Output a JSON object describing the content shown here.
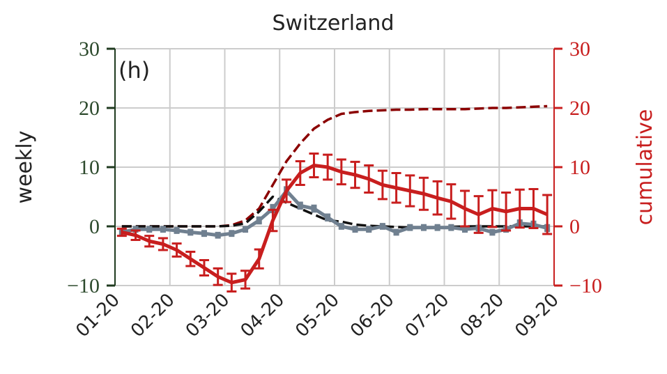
{
  "chart_data": {
    "type": "line",
    "title": "Switzerland",
    "annotation": "(h)",
    "ylabel": "weekly",
    "y2label": "cumulative",
    "xlim": [
      0,
      8
    ],
    "xticks": [
      {
        "value": 0,
        "label": "01-20"
      },
      {
        "value": 1,
        "label": "02-20"
      },
      {
        "value": 2,
        "label": "03-20"
      },
      {
        "value": 3,
        "label": "04-20"
      },
      {
        "value": 4,
        "label": "05-20"
      },
      {
        "value": 5,
        "label": "06-20"
      },
      {
        "value": 6,
        "label": "07-20"
      },
      {
        "value": 7,
        "label": "08-20"
      },
      {
        "value": 8,
        "label": "09-20"
      }
    ],
    "ylim": [
      -10,
      30
    ],
    "yticks": [
      {
        "value": -10,
        "label": "−10"
      },
      0,
      10,
      20,
      30
    ],
    "y2lim": [
      -10,
      30
    ],
    "y2ticks": [
      {
        "value": -10,
        "label": "−10"
      },
      0,
      10,
      20,
      30
    ],
    "grid": true,
    "x": [
      0.125,
      0.375,
      0.625,
      0.875,
      1.125,
      1.375,
      1.625,
      1.875,
      2.125,
      2.375,
      2.625,
      2.875,
      3.125,
      3.375,
      3.625,
      3.875,
      4.125,
      4.375,
      4.625,
      4.875,
      5.125,
      5.375,
      5.625,
      5.875,
      6.125,
      6.375,
      6.625,
      6.875,
      7.125,
      7.375,
      7.625,
      7.875
    ],
    "series": [
      {
        "color": "#8b0000",
        "style": "dashed",
        "axis": "y2",
        "values": [
          0,
          0,
          0,
          0,
          0,
          0,
          0,
          0,
          0.2,
          1,
          3,
          7,
          11,
          14,
          16.5,
          18,
          19,
          19.3,
          19.5,
          19.6,
          19.7,
          19.7,
          19.8,
          19.8,
          19.8,
          19.8,
          19.9,
          20,
          20,
          20.1,
          20.2,
          20.3
        ]
      },
      {
        "color": "#111111",
        "style": "dashed",
        "values": [
          0,
          0,
          0,
          0,
          0,
          0,
          0,
          0,
          0.1,
          0.5,
          2.5,
          5,
          4,
          3,
          2,
          1,
          0.8,
          0.3,
          0.1,
          0,
          -0.1,
          -0.2,
          -0.2,
          -0.2,
          -0.1,
          0,
          0,
          0,
          0,
          0,
          0,
          0
        ]
      },
      {
        "color": "#708090",
        "style": "solid",
        "marker": "square",
        "values": [
          -1,
          -0.5,
          -0.5,
          -0.5,
          -0.7,
          -1,
          -1.2,
          -1.5,
          -1.2,
          -0.5,
          1,
          3,
          6,
          3.5,
          3,
          1.5,
          0,
          -0.5,
          -0.5,
          0,
          -1,
          -0.2,
          -0.2,
          -0.2,
          -0.2,
          -0.5,
          -0.3,
          -1,
          -0.5,
          0.5,
          0.3,
          -0.3
        ],
        "errors": [
          0.4,
          0.4,
          0.4,
          0.4,
          0.4,
          0.4,
          0.4,
          0.4,
          0.4,
          0.4,
          0.5,
          0.6,
          0.6,
          0.5,
          0.5,
          0.5,
          0.4,
          0.4,
          0.4,
          0.4,
          0.4,
          0.4,
          0.4,
          0.4,
          0.4,
          0.4,
          0.4,
          0.4,
          0.4,
          0.5,
          0.5,
          0.5
        ]
      },
      {
        "color": "#c81e1e",
        "style": "solid",
        "axis": "y2",
        "values": [
          -1,
          -1.5,
          -2.5,
          -3,
          -4,
          -5.5,
          -7,
          -8.5,
          -9.5,
          -9,
          -5.5,
          1,
          6,
          9,
          10.3,
          10,
          9.2,
          8.7,
          8,
          7,
          6.5,
          6,
          5.5,
          4.8,
          4.2,
          3,
          2,
          3,
          2.5,
          3,
          3,
          2
        ],
        "errors": [
          0.6,
          0.8,
          0.9,
          1,
          1.1,
          1.2,
          1.3,
          1.4,
          1.5,
          1.5,
          1.6,
          1.8,
          1.9,
          2,
          2,
          2.1,
          2.1,
          2.2,
          2.3,
          2.4,
          2.5,
          2.6,
          2.7,
          2.8,
          2.9,
          3,
          3.1,
          3.1,
          3.2,
          3.2,
          3.3,
          3.3
        ]
      }
    ]
  }
}
